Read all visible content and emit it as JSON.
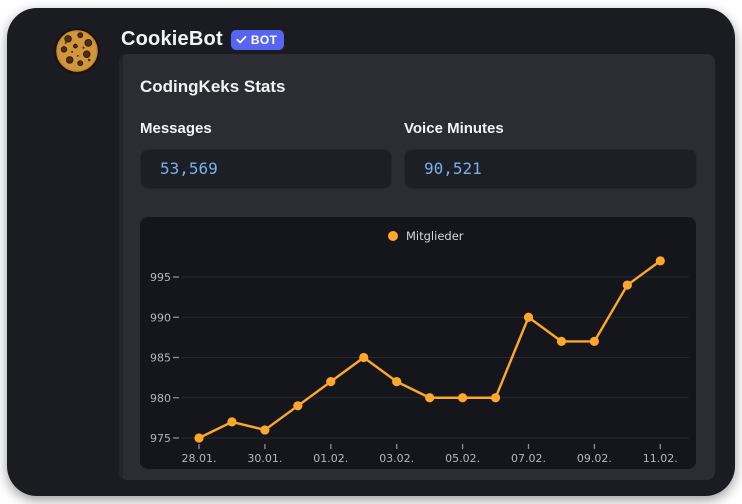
{
  "message": {
    "author": {
      "name": "CookieBot",
      "bot_badge": "BOT"
    },
    "embed": {
      "title": "CodingKeks Stats",
      "fields": [
        {
          "label": "Messages",
          "value": "53,569"
        },
        {
          "label": "Voice Minutes",
          "value": "90,521"
        }
      ]
    }
  },
  "colors": {
    "card_background": "#1a1c22",
    "embed_background": "#2b2d33",
    "codeblock_background": "#1d1f24",
    "codeblock_text": "#74b1ef",
    "badge_background": "#5865F2",
    "chart_background": "#14161b",
    "chart_line": "#FFA72B",
    "chart_label": "#b4b7bc",
    "legend_text": "#d6d8db",
    "gridline": "#262930"
  },
  "chart_data": {
    "type": "line",
    "title": "",
    "legend": {
      "label": "Mitglieder",
      "position": "top-center"
    },
    "x": [
      "28.01.",
      "29.01.",
      "30.01.",
      "31.01.",
      "01.02.",
      "02.02.",
      "03.02.",
      "04.02.",
      "05.02.",
      "06.02.",
      "07.02.",
      "08.02.",
      "09.02.",
      "10.02.",
      "11.02."
    ],
    "series": [
      {
        "name": "Mitglieder",
        "color": "#FFA72B",
        "values": [
          975,
          977,
          976,
          979,
          982,
          985,
          982,
          980,
          980,
          980,
          990,
          987,
          987,
          994,
          997
        ]
      }
    ],
    "yticks": [
      975,
      980,
      985,
      990,
      995
    ],
    "ylim": [
      973.5,
      998.5
    ],
    "xtick_every": 2,
    "grid": "horizontal",
    "xlabel": "",
    "ylabel": ""
  }
}
